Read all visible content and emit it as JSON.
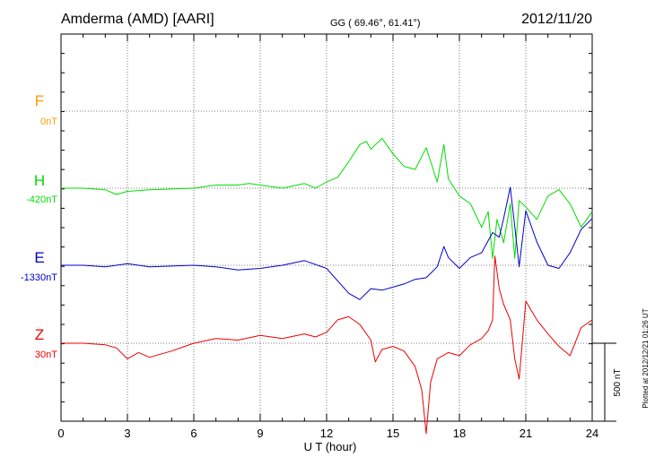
{
  "header": {
    "station": "Amderma (AMD)  [AARI]",
    "coords": "GG ( 69.46°,  61.41°)",
    "date": "2012/11/20"
  },
  "footer": {
    "plotted": "Plotted at 2012/12/21 01:26 UT"
  },
  "colors": {
    "F": "#ff9900",
    "H": "#00dd00",
    "E": "#0000cc",
    "Z": "#ee0000"
  },
  "chart_data": {
    "type": "line",
    "xlabel": "U T (hour)",
    "xlim": [
      0,
      24
    ],
    "x_ticks": [
      0,
      3,
      6,
      9,
      12,
      15,
      18,
      21,
      24
    ],
    "minor_tick_step": 1,
    "grid": true,
    "scale_bar": {
      "label": "500 nT",
      "value_nT": 500
    },
    "series": [
      {
        "name": "F",
        "offset_label": "0nT",
        "x": [],
        "y": []
      },
      {
        "name": "H",
        "offset_label": "-420nT",
        "x": [
          0,
          1,
          2,
          2.5,
          3,
          4,
          5,
          6,
          7,
          8,
          8.5,
          9,
          10,
          11,
          11.5,
          12,
          12.5,
          13,
          13.5,
          13.8,
          14,
          14.5,
          15,
          15.5,
          16,
          16.5,
          17,
          17.3,
          17.5,
          18,
          18.5,
          19,
          19.3,
          19.5,
          19.7,
          20,
          20.3,
          20.5,
          20.7,
          21,
          21.5,
          22,
          22.5,
          23,
          23.5,
          24
        ],
        "y": [
          0,
          0,
          -10,
          -40,
          -20,
          -10,
          -5,
          0,
          20,
          20,
          30,
          20,
          0,
          30,
          0,
          40,
          70,
          170,
          280,
          300,
          250,
          320,
          220,
          140,
          120,
          260,
          40,
          280,
          60,
          -50,
          -100,
          -250,
          -150,
          -450,
          -200,
          -350,
          -100,
          -450,
          -80,
          -120,
          -200,
          -50,
          -10,
          -100,
          -250,
          -150
        ]
      },
      {
        "name": "E",
        "offset_label": "-1330nT",
        "x": [
          0,
          1,
          2,
          3,
          4,
          5,
          6,
          7,
          8,
          9,
          10,
          11,
          12,
          12.5,
          13,
          13.5,
          14,
          14.5,
          15,
          15.5,
          16,
          16.5,
          17,
          17.3,
          17.5,
          18,
          18.5,
          19,
          19.5,
          19.8,
          20,
          20.3,
          20.5,
          20.7,
          21,
          21.5,
          22,
          22.5,
          23,
          23.5,
          24
        ],
        "y": [
          0,
          0,
          -10,
          10,
          -10,
          -5,
          0,
          -10,
          -30,
          -20,
          0,
          30,
          -20,
          -100,
          -180,
          -220,
          -150,
          -160,
          -140,
          -120,
          -90,
          -80,
          -10,
          120,
          50,
          -20,
          50,
          80,
          210,
          180,
          300,
          500,
          250,
          -10,
          350,
          150,
          0,
          -20,
          80,
          230,
          300
        ]
      },
      {
        "name": "Z",
        "offset_label": "30nT",
        "x": [
          0,
          1,
          2,
          2.5,
          3,
          3.5,
          4,
          5,
          6,
          7,
          8,
          9,
          10,
          11,
          11.5,
          12,
          12.5,
          13,
          13.5,
          14,
          14.2,
          14.5,
          15,
          15.5,
          16,
          16.3,
          16.5,
          16.7,
          17,
          17.5,
          18,
          18.5,
          19,
          19.3,
          19.5,
          19.6,
          19.8,
          20,
          20.3,
          20.5,
          20.7,
          21,
          21.5,
          22,
          22.5,
          23,
          23.5,
          24
        ],
        "y": [
          0,
          0,
          -10,
          -30,
          -100,
          -60,
          -90,
          -50,
          0,
          30,
          20,
          50,
          30,
          60,
          40,
          70,
          150,
          170,
          120,
          20,
          -120,
          -40,
          -20,
          -50,
          -150,
          -300,
          -580,
          -250,
          -100,
          -60,
          -80,
          -10,
          30,
          80,
          150,
          560,
          350,
          250,
          150,
          -100,
          -230,
          270,
          150,
          60,
          -20,
          -80,
          100,
          150
        ]
      }
    ]
  }
}
